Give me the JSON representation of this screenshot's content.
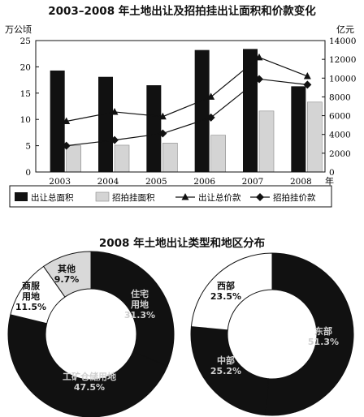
{
  "chart_data": [
    {
      "type": "bar",
      "title": "2003–2008 年土地出让及招拍挂出让面积和价款变化",
      "x_unit": "年",
      "categories": [
        "2003",
        "2004",
        "2005",
        "2006",
        "2007",
        "2008"
      ],
      "y_left": {
        "unit": "万公顷",
        "range": [
          0,
          25
        ],
        "ticks": [
          "0",
          "5",
          "10",
          "15",
          "20",
          "25"
        ]
      },
      "y_right": {
        "unit": "亿元",
        "range": [
          0,
          14000
        ],
        "ticks": [
          "0",
          "2000",
          "4000",
          "6000",
          "8000",
          "10000",
          "12000",
          "14000"
        ]
      },
      "series": [
        {
          "name": "出让总面积",
          "type": "bar",
          "axis": "left",
          "color": "#111111",
          "values": [
            19.3,
            18.1,
            16.5,
            23.2,
            23.4,
            16.3
          ]
        },
        {
          "name": "招拍挂面积",
          "type": "bar",
          "axis": "left",
          "color": "#d4d4d4",
          "values": [
            5.0,
            5.1,
            5.5,
            7.0,
            11.6,
            13.3
          ]
        },
        {
          "name": "出让总价款",
          "type": "line",
          "axis": "right",
          "marker": "triangle",
          "values": [
            5400,
            6400,
            5900,
            8000,
            12200,
            10200
          ]
        },
        {
          "name": "招拍挂价款",
          "type": "line",
          "axis": "right",
          "marker": "diamond",
          "values": [
            2800,
            3400,
            4100,
            5800,
            9900,
            9300
          ]
        }
      ],
      "legend_position": "bottom",
      "grid": false
    },
    {
      "type": "pie",
      "variant": "donut",
      "group_title": "2008 年土地出让类型和地区分布",
      "slices": [
        {
          "name": "住宅用地",
          "value": 31.3,
          "label_lines": [
            "住宅",
            "用地",
            "31.3%"
          ],
          "color": "#111111"
        },
        {
          "name": "工矿仓储用地",
          "value": 47.5,
          "label_lines": [
            "工矿仓储用地",
            "47.5%"
          ],
          "color": "#111111"
        },
        {
          "name": "商服用地",
          "value": 11.5,
          "label_lines": [
            "商服",
            "用地",
            "11.5%"
          ],
          "color": "#ffffff"
        },
        {
          "name": "其他",
          "value": 9.7,
          "label_lines": [
            "其他",
            "9.7%"
          ],
          "color": "#d9d9d9"
        }
      ]
    },
    {
      "type": "pie",
      "variant": "donut",
      "slices": [
        {
          "name": "东部",
          "value": 51.3,
          "label_lines": [
            "东部",
            "51.3%"
          ],
          "color": "#111111"
        },
        {
          "name": "中部",
          "value": 25.2,
          "label_lines": [
            "中部",
            "25.2%"
          ],
          "color": "#111111"
        },
        {
          "name": "西部",
          "value": 23.5,
          "label_lines": [
            "西部",
            "23.5%"
          ],
          "color": "#ffffff"
        }
      ]
    }
  ]
}
